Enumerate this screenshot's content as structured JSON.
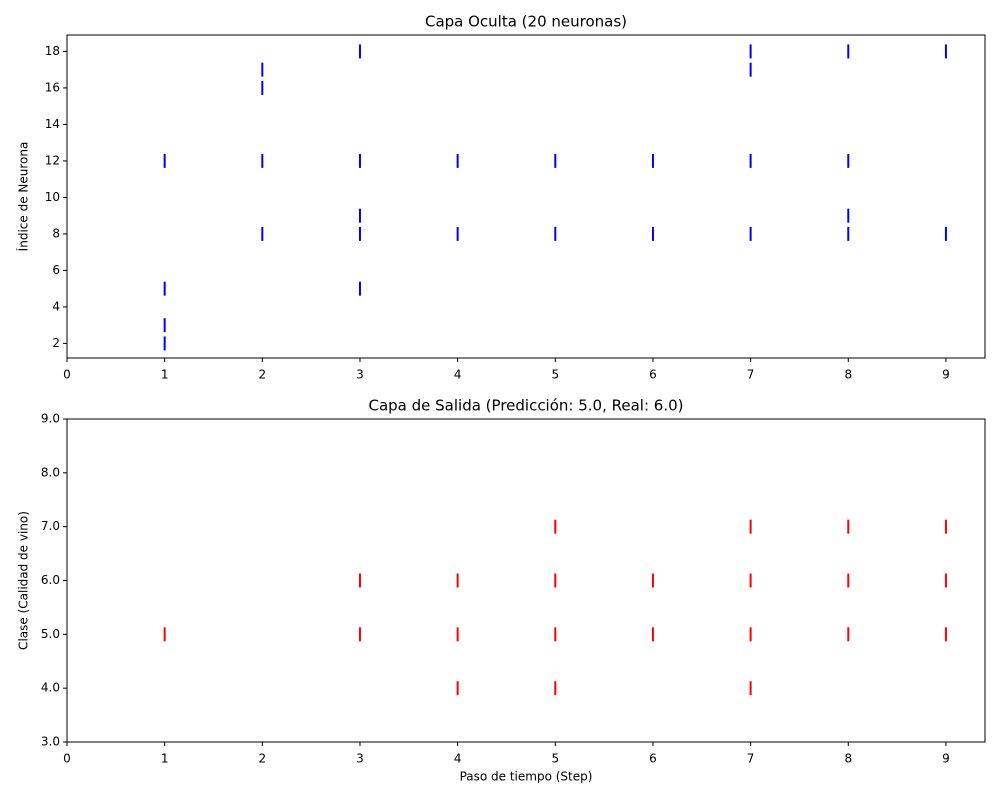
{
  "chart_data": [
    {
      "type": "scatter",
      "title": "Capa Oculta (20 neuronas)",
      "y_label": "Índice de Neurona",
      "color": "#0000ff",
      "x": [
        1,
        1,
        1,
        1,
        2,
        2,
        2,
        2,
        3,
        3,
        3,
        3,
        3,
        4,
        4,
        5,
        5,
        6,
        6,
        7,
        7,
        7,
        7,
        8,
        8,
        8,
        8,
        9,
        9
      ],
      "values": [
        12,
        5,
        3,
        2,
        17,
        16,
        12,
        8,
        18,
        12,
        9,
        8,
        5,
        12,
        8,
        12,
        8,
        12,
        8,
        18,
        17,
        12,
        8,
        18,
        12,
        9,
        8,
        18,
        8
      ],
      "xlim": [
        0,
        9.4
      ],
      "xticks": [
        0,
        1,
        2,
        3,
        4,
        5,
        6,
        7,
        8,
        9
      ],
      "ylim": [
        1.2,
        18.9
      ],
      "yticks": [
        2,
        4,
        6,
        8,
        10,
        12,
        14,
        16,
        18
      ]
    },
    {
      "type": "scatter",
      "title": "Capa de Salida (Predicción: 5.0, Real: 6.0)",
      "x_label": "Paso de tiempo (Step)",
      "y_label": "Clase (Calidad de vino)",
      "color": "#ff0000",
      "x": [
        1,
        3,
        3,
        4,
        4,
        4,
        5,
        5,
        5,
        5,
        6,
        6,
        7,
        7,
        7,
        7,
        8,
        8,
        8,
        9,
        9,
        9
      ],
      "values": [
        5,
        6,
        5,
        6,
        5,
        4,
        7,
        6,
        5,
        4,
        6,
        5,
        7,
        6,
        5,
        4,
        7,
        6,
        5,
        7,
        6,
        5
      ],
      "xlim": [
        0,
        9.4
      ],
      "xticks": [
        0,
        1,
        2,
        3,
        4,
        5,
        6,
        7,
        8,
        9
      ],
      "ylim": [
        3,
        9
      ],
      "yticks": [
        {
          "value": 3,
          "label": "3.0"
        },
        {
          "value": 4,
          "label": "4.0"
        },
        {
          "value": 5,
          "label": "5.0"
        },
        {
          "value": 6,
          "label": "6.0"
        },
        {
          "value": 7,
          "label": "7.0"
        },
        {
          "value": 8,
          "label": "8.0"
        },
        {
          "value": 9,
          "label": "9.0"
        }
      ]
    }
  ]
}
